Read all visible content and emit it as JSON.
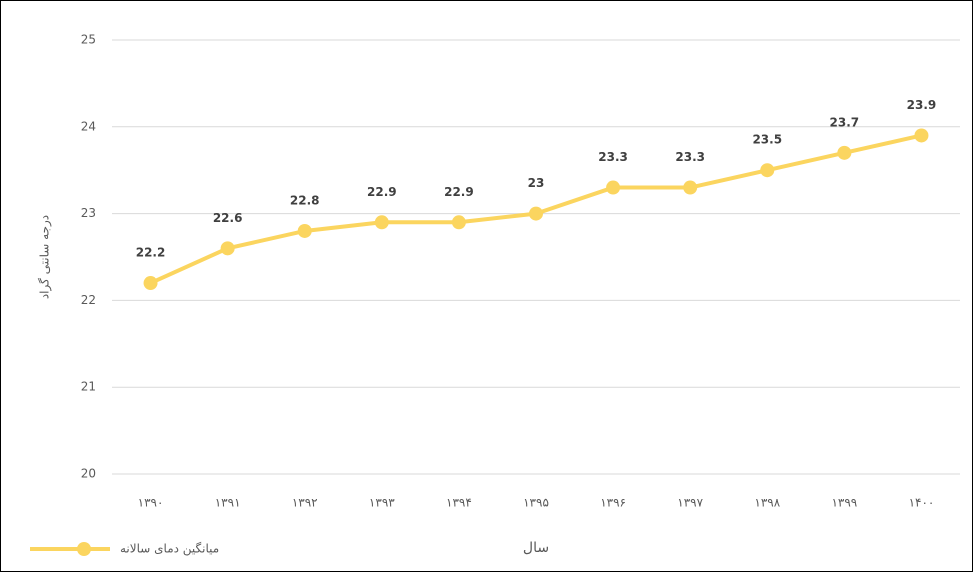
{
  "chart_data": {
    "type": "line",
    "y_label": "درجه سانتی گراد",
    "x_label": "سال",
    "categories": [
      "۱۳۹۰",
      "۱۳۹۱",
      "۱۳۹۲",
      "۱۳۹۳",
      "۱۳۹۴",
      "۱۳۹۵",
      "۱۳۹۶",
      "۱۳۹۷",
      "۱۳۹۸",
      "۱۳۹۹",
      "۱۴۰۰"
    ],
    "series": [
      {
        "name": "میانگین دمای سالانه",
        "color": "#fbd55f",
        "values": [
          22.2,
          22.6,
          22.8,
          22.9,
          22.9,
          23.0,
          23.3,
          23.3,
          23.5,
          23.7,
          23.9
        ]
      }
    ],
    "ylim": [
      20,
      25
    ],
    "yticks": [
      20,
      21,
      22,
      23,
      24,
      25
    ],
    "grid": true,
    "legend": "bottom-left"
  }
}
